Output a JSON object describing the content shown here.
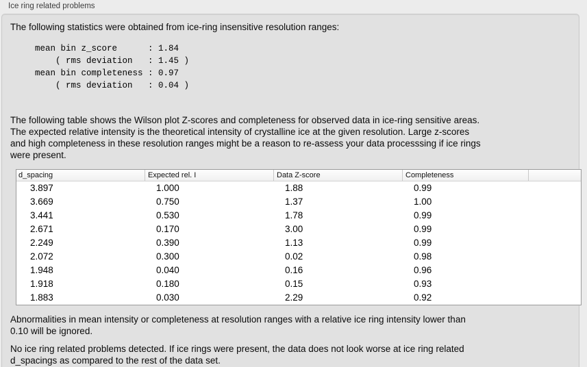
{
  "panel": {
    "title": "Ice ring related problems",
    "intro": "The following statistics were obtained from ice-ring insensitive resolution ranges:",
    "stats_block": "mean bin z_score      : 1.84\n    ( rms deviation   : 1.45 )\nmean bin completeness : 0.97\n    ( rms deviation   : 0.04 )",
    "table_description": "The following table shows the Wilson plot Z-scores and completeness for observed data in ice-ring sensitive areas.\nThe expected relative intensity is the theoretical intensity of crystalline ice at the given resolution. Large z-scores\nand high completeness in these resolution ranges might be a reason to re-assess your data processsing if ice rings\nwere present.",
    "ignore_note": "Abnormalities in mean intensity or completeness at resolution ranges with a relative ice ring intensity lower than\n0.10 will be ignored.",
    "conclusion": "No ice ring related problems detected. If ice rings were present, the data does not look worse at ice ring related\nd_spacings as compared to the rest of the data set."
  },
  "table": {
    "columns": [
      "d_spacing",
      "Expected rel. I",
      "Data Z-score",
      "Completeness"
    ],
    "rows": [
      [
        "3.897",
        "1.000",
        "1.88",
        "0.99"
      ],
      [
        "3.669",
        "0.750",
        "1.37",
        "1.00"
      ],
      [
        "3.441",
        "0.530",
        "1.78",
        "0.99"
      ],
      [
        "2.671",
        "0.170",
        "3.00",
        "0.99"
      ],
      [
        "2.249",
        "0.390",
        "1.13",
        "0.99"
      ],
      [
        "2.072",
        "0.300",
        "0.02",
        "0.98"
      ],
      [
        "1.948",
        "0.040",
        "0.16",
        "0.96"
      ],
      [
        "1.918",
        "0.180",
        "0.15",
        "0.93"
      ],
      [
        "1.883",
        "0.030",
        "2.29",
        "0.92"
      ]
    ]
  },
  "colors": {
    "page_background": "#ececec",
    "panel_background": "#e1e1e1",
    "panel_border": "#c9c9c9",
    "table_border": "#9b9b9b",
    "table_header_background": "#f4f4f4",
    "table_body_background": "#ffffff",
    "text": "#000000"
  }
}
